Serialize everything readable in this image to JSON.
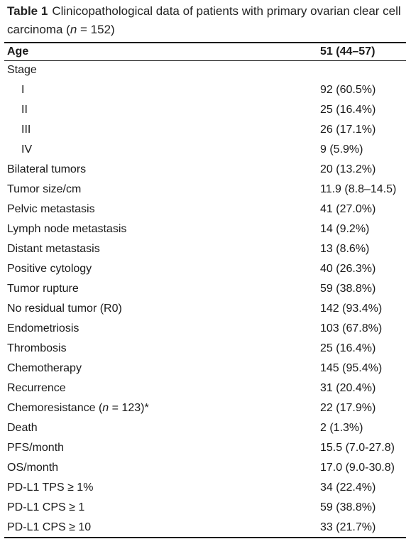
{
  "caption": {
    "label": "Table 1",
    "text_before": "Clinicopathological data of patients with primary ovarian clear cell carcinoma (",
    "italic_n": "n",
    "text_after": " = 152)"
  },
  "header": {
    "col1": "Age",
    "col2": "51 (44–57)"
  },
  "rows": [
    {
      "label": "Stage",
      "value": ""
    },
    {
      "label": "I",
      "value": "92 (60.5%)"
    },
    {
      "label": "II",
      "value": "25 (16.4%)"
    },
    {
      "label": "III",
      "value": "26 (17.1%)"
    },
    {
      "label": "IV",
      "value": "9 (5.9%)"
    },
    {
      "label": "Bilateral tumors",
      "value": "20 (13.2%)"
    },
    {
      "label": "Tumor size/cm",
      "value": "11.9 (8.8–14.5)"
    },
    {
      "label": "Pelvic metastasis",
      "value": "41 (27.0%)"
    },
    {
      "label": "Lymph node metastasis",
      "value": "14 (9.2%)"
    },
    {
      "label": "Distant metastasis",
      "value": "13 (8.6%)"
    },
    {
      "label": "Positive cytology",
      "value": "40 (26.3%)"
    },
    {
      "label": "Tumor rupture",
      "value": "59 (38.8%)"
    },
    {
      "label": "No residual tumor (R0)",
      "value": "142 (93.4%)"
    },
    {
      "label": "Endometriosis",
      "value": "103 (67.8%)"
    },
    {
      "label": "Thrombosis",
      "value": "25 (16.4%)"
    },
    {
      "label": "Chemotherapy",
      "value": "145 (95.4%)"
    },
    {
      "label": "Recurrence",
      "value": "31 (20.4%)"
    },
    {
      "label_before": "Chemoresistance (",
      "label_italic": "n",
      "label_after": " = 123)*",
      "value": "22 (17.9%)"
    },
    {
      "label": "Death",
      "value": "2 (1.3%)"
    },
    {
      "label": "PFS/month",
      "value": "15.5 (7.0-27.8)"
    },
    {
      "label": "OS/month",
      "value": "17.0 (9.0-30.8)"
    },
    {
      "label": "PD-L1 TPS ≥ 1%",
      "value": "34 (22.4%)"
    },
    {
      "label": "PD-L1 CPS ≥ 1",
      "value": "59 (38.8%)"
    },
    {
      "label": "PD-L1 CPS ≥ 10",
      "value": "33 (21.7%)"
    }
  ]
}
